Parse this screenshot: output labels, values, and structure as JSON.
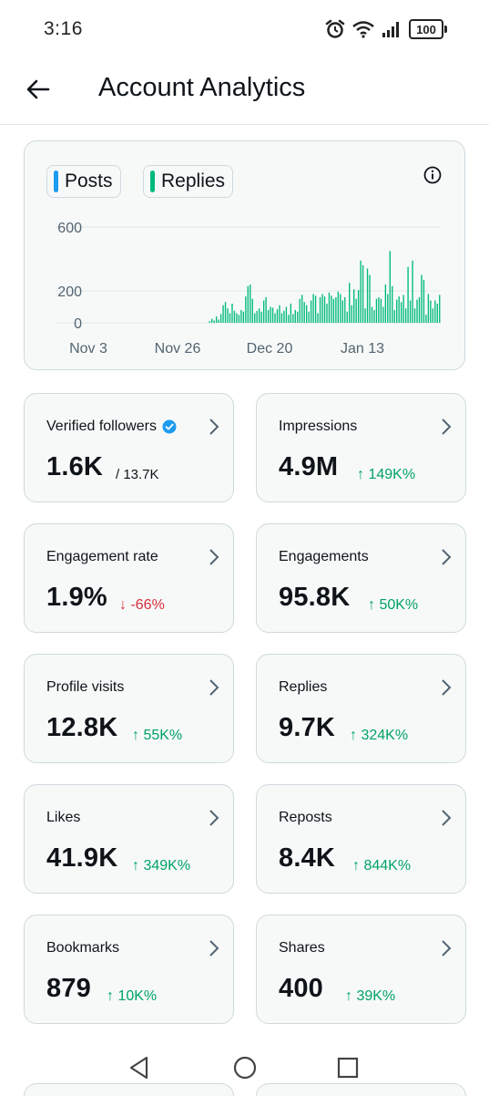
{
  "status_bar": {
    "time": "3:16",
    "battery": "100",
    "icons": [
      "alarm-icon",
      "wifi-icon",
      "signal-icon",
      "battery-icon"
    ]
  },
  "header": {
    "title": "Account Analytics",
    "back_icon": "arrow-left-icon"
  },
  "chart": {
    "chips": [
      {
        "label": "Posts",
        "color": "#1d9bf0"
      },
      {
        "label": "Replies",
        "color": "#00ba7c"
      }
    ],
    "info_icon": "info-icon"
  },
  "chart_data": {
    "type": "bar",
    "y_ticks": [
      "600",
      "200",
      "0"
    ],
    "ylim": [
      0,
      600
    ],
    "x_tick_labels": [
      "Nov 3",
      "Nov 26",
      "Dec 20",
      "Jan 13"
    ],
    "bar_color": "#00ba7c",
    "grid": true,
    "series": [
      {
        "values": [
          0,
          0,
          0,
          0,
          0,
          0,
          0,
          0,
          0,
          0,
          0,
          0,
          0,
          0,
          0,
          0,
          0,
          0,
          0,
          0,
          0,
          0,
          0,
          0,
          0,
          0,
          0,
          0,
          0,
          0,
          0,
          0,
          0,
          0,
          0,
          0,
          0,
          0,
          0,
          0,
          0,
          0,
          0,
          0,
          0,
          0,
          0,
          0,
          0,
          0,
          0,
          0,
          0,
          0,
          0,
          0,
          0,
          0,
          0,
          0,
          0,
          0,
          0,
          10,
          25,
          15,
          40,
          20,
          55,
          110,
          130,
          90,
          60,
          120,
          75,
          60,
          50,
          80,
          70,
          165,
          230,
          240,
          150,
          60,
          75,
          90,
          70,
          140,
          160,
          80,
          100,
          95,
          60,
          85,
          110,
          60,
          75,
          100,
          50,
          120,
          55,
          80,
          70,
          150,
          175,
          130,
          110,
          70,
          140,
          180,
          170,
          60,
          160,
          180,
          165,
          120,
          190,
          170,
          150,
          160,
          195,
          180,
          140,
          160,
          70,
          250,
          110,
          210,
          150,
          205,
          390,
          360,
          90,
          340,
          300,
          100,
          80,
          150,
          160,
          150,
          100,
          240,
          180,
          450,
          230,
          80,
          145,
          165,
          130,
          175,
          90,
          350,
          140,
          390,
          90,
          145,
          160,
          300,
          270,
          50,
          180,
          140,
          90,
          140,
          120,
          175
        ],
        "color": "#00ba7c"
      }
    ]
  },
  "stats": [
    {
      "label": "Verified followers",
      "value": "1.6K",
      "delta": "/ 13.7K",
      "trend": "neutral",
      "verified": true
    },
    {
      "label": "Impressions",
      "value": "4.9M",
      "delta": "149K%",
      "trend": "up"
    },
    {
      "label": "Engagement rate",
      "value": "1.9%",
      "delta": "-66%",
      "trend": "down"
    },
    {
      "label": "Engagements",
      "value": "95.8K",
      "delta": "50K%",
      "trend": "up"
    },
    {
      "label": "Profile visits",
      "value": "12.8K",
      "delta": "55K%",
      "trend": "up"
    },
    {
      "label": "Replies",
      "value": "9.7K",
      "delta": "324K%",
      "trend": "up"
    },
    {
      "label": "Likes",
      "value": "41.9K",
      "delta": "349K%",
      "trend": "up"
    },
    {
      "label": "Reposts",
      "value": "8.4K",
      "delta": "844K%",
      "trend": "up"
    },
    {
      "label": "Bookmarks",
      "value": "879",
      "delta": "10K%",
      "trend": "up"
    },
    {
      "label": "Shares",
      "value": "400",
      "delta": "39K%",
      "trend": "up"
    }
  ],
  "nav": {
    "back_icon": "triangle-back-icon",
    "home_icon": "circle-home-icon",
    "recents_icon": "square-recents-icon"
  },
  "colors": {
    "accent_blue": "#1d9bf0",
    "accent_green": "#00ba7c",
    "up": "#00a264",
    "down": "#d92d3a",
    "card_bg": "#f7f9f9",
    "card_border": "#cfd9de"
  }
}
